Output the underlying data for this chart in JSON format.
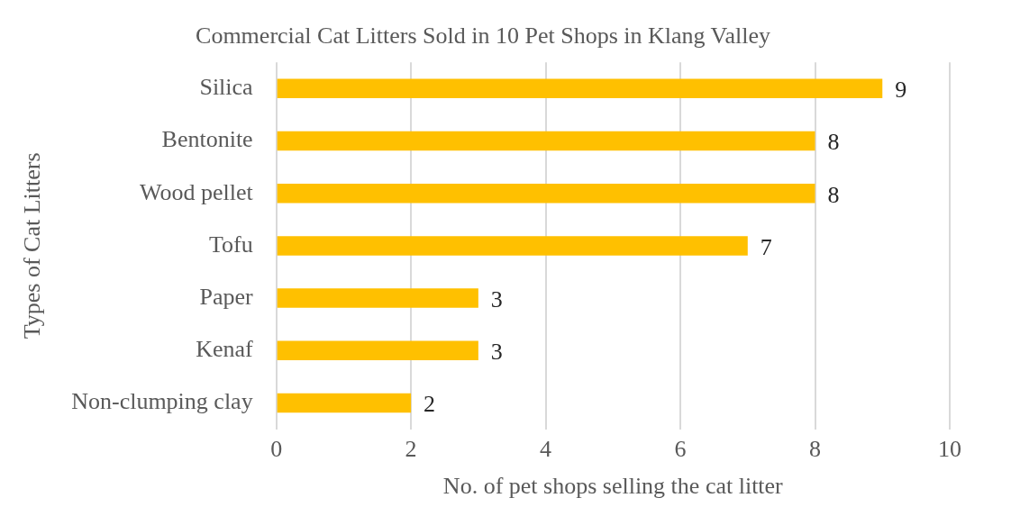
{
  "chart_data": {
    "type": "bar",
    "orientation": "horizontal",
    "title": "Commercial Cat Litters Sold in 10 Pet Shops in Klang Valley",
    "xlabel": "No. of pet shops selling the cat litter",
    "ylabel": "Types of Cat Litters",
    "categories": [
      "Silica",
      "Bentonite",
      "Wood pellet",
      "Tofu",
      "Paper",
      "Kenaf",
      "Non-clumping clay"
    ],
    "values": [
      9,
      8,
      8,
      7,
      3,
      3,
      2
    ],
    "color": "#ffc000",
    "xlim": [
      0,
      10
    ],
    "xticks": [
      0,
      2,
      4,
      6,
      8,
      10
    ],
    "grid": "x",
    "data_labels": true
  }
}
